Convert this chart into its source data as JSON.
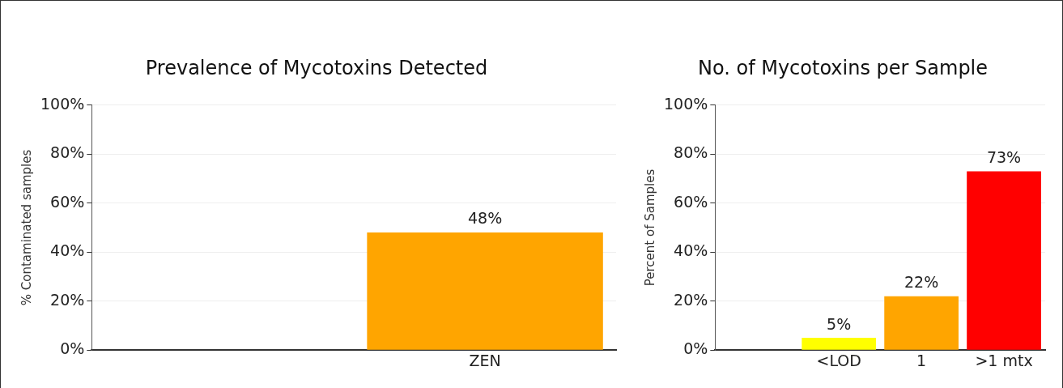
{
  "chart_data": [
    {
      "type": "bar",
      "title": "Prevalence of Mycotoxins Detected",
      "ylabel": "% Contaminated samples",
      "categories": [
        null,
        "ZEN"
      ],
      "values": [
        null,
        48
      ],
      "color": "#ffa500",
      "ylim": [
        0,
        100
      ],
      "yticks": [
        {
          "value": 0,
          "label": "0%"
        },
        {
          "value": 20,
          "label": "20%"
        },
        {
          "value": 40,
          "label": "40%"
        },
        {
          "value": 60,
          "label": "60%"
        },
        {
          "value": 80,
          "label": "80%"
        },
        {
          "value": 100,
          "label": "100%"
        }
      ],
      "value_labels": [
        null,
        "48%"
      ],
      "grid": "y",
      "legend": false
    },
    {
      "type": "bar",
      "title": "No. of Mycotoxins per Sample",
      "ylabel": "Percent of Samples",
      "categories": [
        null,
        "<LOD",
        "1",
        ">1 mtx"
      ],
      "values": [
        null,
        5,
        22,
        73
      ],
      "colors": [
        "#ffff00",
        "#ffff00",
        "#ffa500",
        "#ff0000"
      ],
      "ylim": [
        0,
        100
      ],
      "yticks": [
        {
          "value": 0,
          "label": "0%"
        },
        {
          "value": 20,
          "label": "20%"
        },
        {
          "value": 40,
          "label": "40%"
        },
        {
          "value": 60,
          "label": "60%"
        },
        {
          "value": 80,
          "label": "80%"
        },
        {
          "value": 100,
          "label": "100%"
        }
      ],
      "value_labels": [
        null,
        "5%",
        "22%",
        "73%"
      ],
      "grid": "y",
      "legend": false
    }
  ]
}
